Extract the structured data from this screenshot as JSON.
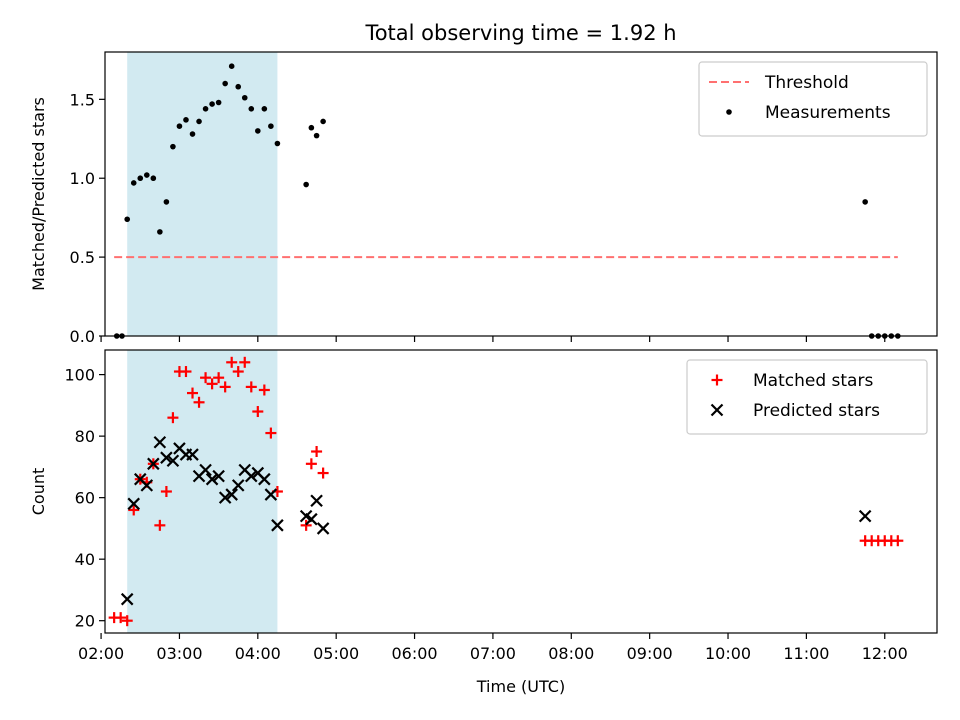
{
  "chart_data": {
    "title": "Total observing time = 1.92 h",
    "shared_x": {
      "label": "Time (UTC)",
      "unit": "hours UTC",
      "range": [
        "02:03",
        "12:40"
      ],
      "ticks": [
        "02:00",
        "03:00",
        "04:00",
        "05:00",
        "06:00",
        "07:00",
        "08:00",
        "09:00",
        "10:00",
        "11:00",
        "12:00"
      ]
    },
    "observing_window": {
      "start": "02:20",
      "end": "04:15",
      "color": "#add8e6"
    },
    "panels": [
      {
        "type": "scatter",
        "ylabel": "Matched/Predicted stars",
        "ylim": [
          0,
          1.8
        ],
        "yticks": [
          "0.0",
          "0.5",
          "1.0",
          "1.5"
        ],
        "legend": "top-right",
        "series": [
          {
            "name": "Threshold",
            "kind": "hline",
            "value": 0.5,
            "x_range": [
              "02:10",
              "12:10"
            ],
            "color": "#ff7070",
            "style": "dashed"
          },
          {
            "name": "Measurements",
            "kind": "points",
            "color": "#000000",
            "x": [
              "02:12",
              "02:16",
              "02:20",
              "02:25",
              "02:30",
              "02:35",
              "02:40",
              "02:45",
              "02:50",
              "02:55",
              "03:00",
              "03:05",
              "03:10",
              "03:15",
              "03:20",
              "03:25",
              "03:30",
              "03:35",
              "03:40",
              "03:45",
              "03:50",
              "03:55",
              "04:00",
              "04:05",
              "04:10",
              "04:15",
              "04:37",
              "04:41",
              "04:45",
              "04:50",
              "11:45",
              "11:50",
              "11:55",
              "12:00",
              "12:05",
              "12:10"
            ],
            "y": [
              0.0,
              0.0,
              0.74,
              0.97,
              1.0,
              1.02,
              1.0,
              0.66,
              0.85,
              1.2,
              1.33,
              1.37,
              1.28,
              1.36,
              1.44,
              1.47,
              1.48,
              1.6,
              1.71,
              1.58,
              1.51,
              1.44,
              1.3,
              1.44,
              1.33,
              1.22,
              0.96,
              1.32,
              1.27,
              1.36,
              0.85,
              0.0,
              0.0,
              0.0,
              0.0,
              0.0
            ]
          }
        ]
      },
      {
        "type": "scatter",
        "ylabel": "Count",
        "ylim": [
          16,
          108
        ],
        "yticks": [
          "20",
          "40",
          "60",
          "80",
          "100"
        ],
        "legend": "top-right",
        "series": [
          {
            "name": "Matched stars",
            "marker": "plus",
            "color": "#ff0000",
            "x": [
              "02:10",
              "02:15",
              "02:20",
              "02:25",
              "02:30",
              "02:35",
              "02:40",
              "02:45",
              "02:50",
              "02:55",
              "03:00",
              "03:05",
              "03:10",
              "03:15",
              "03:20",
              "03:25",
              "03:30",
              "03:35",
              "03:40",
              "03:45",
              "03:50",
              "03:55",
              "04:00",
              "04:05",
              "04:10",
              "04:15",
              "04:37",
              "04:41",
              "04:45",
              "04:50",
              "11:45",
              "11:50",
              "11:55",
              "12:00",
              "12:05",
              "12:10"
            ],
            "y": [
              21,
              21,
              20,
              56,
              66,
              65,
              71,
              51,
              62,
              86,
              101,
              101,
              94,
              91,
              99,
              97,
              99,
              96,
              104,
              101,
              104,
              96,
              88,
              95,
              81,
              62,
              51,
              71,
              75,
              68,
              46,
              46,
              46,
              46,
              46,
              46
            ]
          },
          {
            "name": "Predicted stars",
            "marker": "x",
            "color": "#000000",
            "x": [
              "02:20",
              "02:25",
              "02:30",
              "02:35",
              "02:40",
              "02:45",
              "02:50",
              "02:55",
              "03:00",
              "03:05",
              "03:10",
              "03:15",
              "03:20",
              "03:25",
              "03:30",
              "03:35",
              "03:40",
              "03:45",
              "03:50",
              "03:55",
              "04:00",
              "04:05",
              "04:10",
              "04:15",
              "04:37",
              "04:41",
              "04:45",
              "04:50",
              "11:45"
            ],
            "y": [
              27,
              58,
              66,
              64,
              71,
              78,
              73,
              72,
              76,
              74,
              74,
              67,
              69,
              66,
              67,
              60,
              61,
              64,
              69,
              67,
              68,
              66,
              61,
              51,
              54,
              53,
              59,
              50,
              54
            ]
          }
        ]
      }
    ]
  }
}
